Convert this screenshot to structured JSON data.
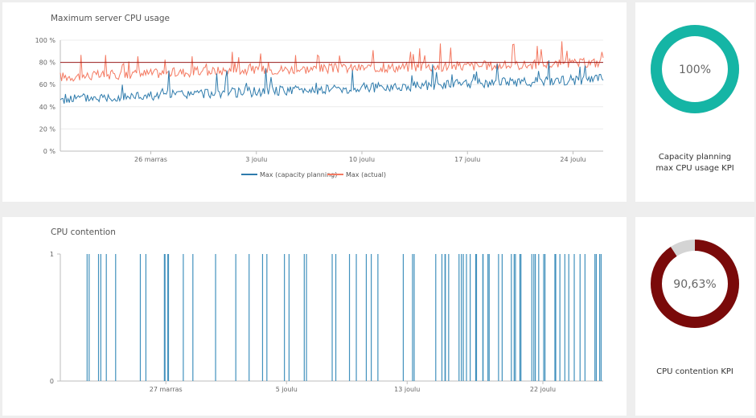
{
  "charts": {
    "cpu": {
      "title": "Maximum server CPU usage",
      "legend": [
        "Max (capacity planning)",
        "Max (actual)"
      ],
      "y_ticks": [
        "0 %",
        "20 %",
        "40 %",
        "60 %",
        "80 %",
        "100 %"
      ],
      "x_ticks": [
        "26 marras",
        "3 joulu",
        "10 joulu",
        "17 joulu",
        "24 joulu"
      ]
    },
    "contention": {
      "title": "CPU contention",
      "y_ticks": [
        "0",
        "1"
      ],
      "x_ticks": [
        "27 marras",
        "5 joulu",
        "13 joulu",
        "22 joulu"
      ]
    }
  },
  "kpis": {
    "cpu": {
      "value": "100%",
      "label_line1": "Capacity planning",
      "label_line2": "max CPU usage KPI"
    },
    "contention": {
      "value": "90,63%",
      "label_line1": "CPU contention KPI",
      "label_line2": ""
    }
  },
  "colors": {
    "capacity": "#2e7bac",
    "actual": "#f47a62",
    "contention_bar": "#4191bd",
    "kpi_teal": "#15b5a5",
    "kpi_dark_red": "#7a0a0a",
    "kpi_gray": "#d4d4d4",
    "threshold": "#9b1c1c"
  },
  "chart_data": [
    {
      "type": "line",
      "title": "Maximum server CPU usage",
      "x_range": [
        "2017-11-20",
        "2017-12-26"
      ],
      "x_ticks": [
        "26 marras",
        "3 joulu",
        "10 joulu",
        "17 joulu",
        "24 joulu"
      ],
      "ylim": [
        0,
        100
      ],
      "y_unit": "%",
      "threshold": 80,
      "legend_position": "bottom",
      "series": [
        {
          "name": "Max (capacity planning)",
          "x": [
            "2017-11-20",
            "2017-11-24",
            "2017-11-28",
            "2017-12-02",
            "2017-12-06",
            "2017-12-10",
            "2017-12-14",
            "2017-12-18",
            "2017-12-22",
            "2017-12-26"
          ],
          "values": [
            47,
            49,
            51,
            53,
            55,
            57,
            59,
            61,
            63,
            65
          ]
        },
        {
          "name": "Max (actual)",
          "x": [
            "2017-11-20",
            "2017-11-24",
            "2017-11-28",
            "2017-12-02",
            "2017-12-06",
            "2017-12-10",
            "2017-12-14",
            "2017-12-18",
            "2017-12-22",
            "2017-12-26"
          ],
          "values": [
            67,
            69,
            71,
            73,
            74,
            75,
            76,
            77,
            78,
            80
          ]
        }
      ]
    },
    {
      "type": "bar",
      "title": "CPU contention",
      "x_range": [
        "2017-11-20",
        "2017-12-26"
      ],
      "x_ticks": [
        "27 marras",
        "5 joulu",
        "13 joulu",
        "22 joulu"
      ],
      "ylim": [
        0,
        1
      ],
      "events_value": 1,
      "events_x": [
        "2017-11-21",
        "2017-11-22",
        "2017-11-23",
        "2017-11-25",
        "2017-11-26",
        "2017-11-27",
        "2017-11-28",
        "2017-11-30",
        "2017-12-01",
        "2017-12-02",
        "2017-12-03",
        "2017-12-04",
        "2017-12-05",
        "2017-12-06",
        "2017-12-08",
        "2017-12-09",
        "2017-12-10",
        "2017-12-11",
        "2017-12-12",
        "2017-12-13",
        "2017-12-14",
        "2017-12-15",
        "2017-12-16",
        "2017-12-17",
        "2017-12-18",
        "2017-12-19",
        "2017-12-20",
        "2017-12-21",
        "2017-12-22",
        "2017-12-23",
        "2017-12-24",
        "2017-12-25",
        "2017-12-26"
      ]
    }
  ]
}
